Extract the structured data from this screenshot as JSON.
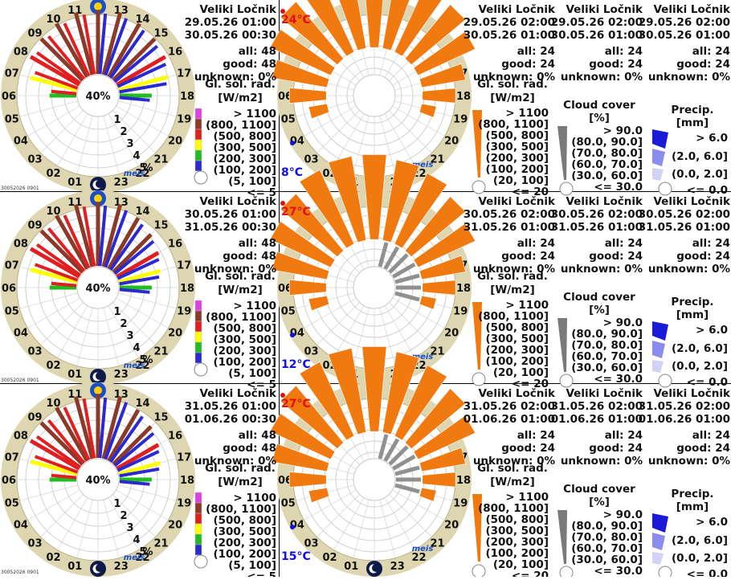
{
  "station": "Veliki Ločnik",
  "hours": [
    "00",
    "01",
    "02",
    "03",
    "04",
    "05",
    "06",
    "07",
    "08",
    "09",
    "10",
    "11",
    "12",
    "13",
    "14",
    "15",
    "16",
    "17",
    "18",
    "19",
    "20",
    "21",
    "22",
    "23"
  ],
  "pct_center": "40%",
  "ring_labels": [
    "1",
    "2",
    "3",
    "4",
    "5"
  ],
  "pct_sign": "%",
  "logo_text": "meis",
  "stamp": "30052026 0901",
  "legend_rad": {
    "title": "Gl. sol. rad.",
    "unit": "[W/m2]",
    "classes": [
      "> 1100",
      "(800, 1100]",
      "(500, 800]",
      "(300, 500]",
      "(200, 300]",
      "(100, 200]",
      "(5, 100]",
      "<= 5"
    ]
  },
  "legend_rad_right": {
    "title": "Gl. sol. rad.",
    "unit": "[W/m2]",
    "classes": [
      "> 1100",
      "(800, 1100]",
      "(500, 800]",
      "(300, 500]",
      "(200, 300]",
      "(100, 200]",
      "(20, 100]",
      "<= 20"
    ]
  },
  "legend_cloud": {
    "title": "Cloud cover",
    "unit": "[%]",
    "classes": [
      "> 90.0",
      "(80.0, 90.0]",
      "(70.0, 80.0]",
      "(60.0, 70.0]",
      "(30.0, 60.0]",
      "<= 30.0"
    ]
  },
  "legend_precip": {
    "title": "Precip.",
    "unit": "[mm]",
    "classes": [
      "> 6.0",
      "(2.0, 6.0]",
      "(0.0, 2.0]",
      "<= 0.0"
    ]
  },
  "colors": {
    "rad": [
      "#e040e0",
      "#8b3a2a",
      "#e02020",
      "#ffff00",
      "#22bb22",
      "#2a2ad0",
      "#ffffff"
    ],
    "orange": "#f07a10",
    "cloud": "#7a7a7a",
    "precip": "#1a1ad8"
  },
  "rows": [
    {
      "obs": {
        "from": "29.05.26 01:00",
        "to": "30.05.26 00:30",
        "all": "all: 48",
        "good": "good: 48",
        "unknown": "unknown: 0%"
      },
      "fc_rad": {
        "from": "29.05.26 02:00",
        "to": "30.05.26 01:00",
        "all": "all: 24",
        "good": "good: 24",
        "unknown": "unknown: 0%"
      },
      "fc_cloud": {
        "from": "29.05.26 02:00",
        "to": "30.05.26 01:00",
        "all": "all: 24",
        "good": "good: 24",
        "unknown": "unknown: 0%"
      },
      "fc_precip": {
        "from": "29.05.26 02:00",
        "to": "30.05.26 01:00",
        "all": "all: 24",
        "good": "good: 24",
        "unknown": "unknown: 0%"
      },
      "tmax": "24°C",
      "tmin": "8°C"
    },
    {
      "obs": {
        "from": "30.05.26 01:00",
        "to": "31.05.26 00:30",
        "all": "all: 48",
        "good": "good: 48",
        "unknown": "unknown: 0%"
      },
      "fc_rad": {
        "from": "30.05.26 02:00",
        "to": "31.05.26 01:00",
        "all": "all: 24",
        "good": "good: 24",
        "unknown": "unknown: 0%"
      },
      "fc_cloud": {
        "from": "30.05.26 02:00",
        "to": "31.05.26 01:00",
        "all": "all: 24",
        "good": "good: 24",
        "unknown": "unknown: 0%"
      },
      "fc_precip": {
        "from": "30.05.26 02:00",
        "to": "31.05.26 01:00",
        "all": "all: 24",
        "good": "good: 24",
        "unknown": "unknown: 0%"
      },
      "tmax": "27°C",
      "tmin": "12°C"
    },
    {
      "obs": {
        "from": "31.05.26 01:00",
        "to": "01.06.26 00:30",
        "all": "all: 48",
        "good": "good: 48",
        "unknown": "unknown: 0%"
      },
      "fc_rad": {
        "from": "31.05.26 02:00",
        "to": "01.06.26 01:00",
        "all": "all: 24",
        "good": "good: 24",
        "unknown": "unknown: 0%"
      },
      "fc_cloud": {
        "from": "31.05.26 02:00",
        "to": "01.06.26 01:00",
        "all": "all: 24",
        "good": "good: 24",
        "unknown": "unknown: 0%"
      },
      "fc_precip": {
        "from": "31.05.26 02:00",
        "to": "01.06.26 01:00",
        "all": "all: 24",
        "good": "good: 24",
        "unknown": "unknown: 0%"
      },
      "tmax": "27°C",
      "tmin": "15°C"
    }
  ],
  "chart_data": [
    {
      "type": "radial-bar",
      "panel": "observed-1",
      "x": [
        6,
        7,
        8,
        9,
        10,
        11,
        12,
        13,
        14,
        15,
        16,
        17,
        18
      ],
      "series": [
        {
          "values": [
            0.5,
            0.9,
            1.05,
            1.1,
            1.15,
            1.2,
            1.2,
            1.2,
            1.15,
            1.1,
            1.05,
            0.95,
            0.6
          ]
        }
      ]
    },
    {
      "type": "radial-bar",
      "panel": "forecast-1",
      "x": [
        5,
        6,
        7,
        8,
        9,
        10,
        11,
        12,
        13,
        14,
        15,
        16,
        17,
        18,
        19
      ],
      "series": [
        {
          "values": [
            0.25,
            0.5,
            0.75,
            0.9,
            1.0,
            1.1,
            1.15,
            1.15,
            1.1,
            1.05,
            0.95,
            0.85,
            0.6,
            0.45,
            0.2
          ]
        }
      ]
    },
    {
      "type": "radial-bar",
      "panel": "observed-2",
      "x": [
        6,
        7,
        8,
        9,
        10,
        11,
        12,
        13,
        14,
        15,
        16,
        17,
        18
      ],
      "series": [
        {
          "values": [
            0.5,
            0.9,
            1.05,
            1.1,
            1.15,
            1.2,
            1.2,
            1.2,
            1.1,
            1.0,
            0.9,
            0.8,
            0.6
          ]
        }
      ]
    },
    {
      "type": "radial-bar",
      "panel": "forecast-2",
      "x": [
        5,
        6,
        7,
        8,
        9,
        10,
        11,
        12,
        13,
        14,
        15,
        16,
        17,
        18,
        19
      ],
      "series": [
        {
          "values": [
            0.25,
            0.5,
            0.75,
            0.9,
            1.0,
            1.1,
            1.15,
            1.15,
            1.1,
            1.05,
            0.95,
            0.85,
            0.6,
            0.45,
            0.2
          ]
        }
      ]
    },
    {
      "type": "radial-bar",
      "panel": "observed-3",
      "x": [
        6,
        7,
        8,
        9,
        10,
        11,
        12,
        13,
        14,
        15,
        16,
        17,
        18
      ],
      "series": [
        {
          "values": [
            0.5,
            0.9,
            1.05,
            1.1,
            1.15,
            1.2,
            1.2,
            1.2,
            1.1,
            1.0,
            0.9,
            0.8,
            0.6
          ]
        }
      ]
    },
    {
      "type": "radial-bar",
      "panel": "forecast-3",
      "x": [
        5,
        6,
        7,
        8,
        9,
        10,
        11,
        12,
        13,
        14,
        15,
        16,
        17,
        18,
        19
      ],
      "series": [
        {
          "values": [
            0.25,
            0.5,
            0.75,
            0.9,
            1.0,
            1.1,
            1.15,
            1.15,
            1.1,
            1.05,
            0.95,
            0.85,
            0.6,
            0.45,
            0.2
          ]
        }
      ]
    }
  ]
}
